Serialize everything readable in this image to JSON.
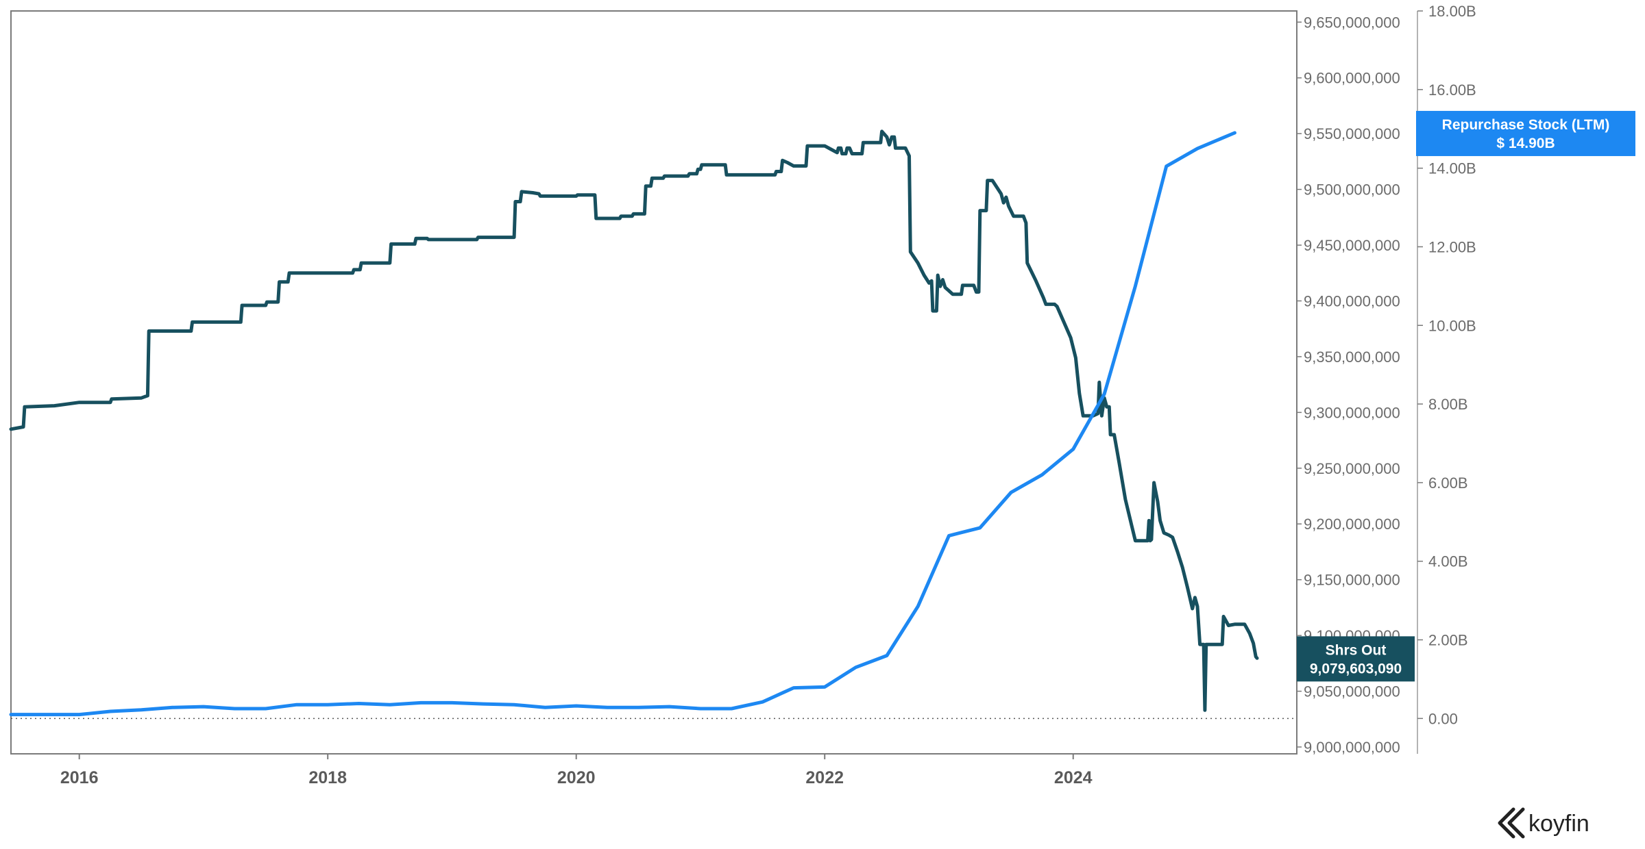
{
  "chart_data": {
    "type": "line",
    "x_ticks": [
      "2016",
      "2018",
      "2020",
      "2022",
      "2024"
    ],
    "x_range": [
      2015.45,
      2025.8
    ],
    "left_axis": {
      "range": [
        9000000000,
        9660000000
      ],
      "ticks": [
        "9,000,000,000",
        "9,050,000,000",
        "9,100,000,000",
        "9,150,000,000",
        "9,200,000,000",
        "9,250,000,000",
        "9,300,000,000",
        "9,350,000,000",
        "9,400,000,000",
        "9,450,000,000",
        "9,500,000,000",
        "9,550,000,000",
        "9,600,000,000",
        "9,650,000,000"
      ]
    },
    "right_axis": {
      "range": [
        -0.9,
        18.0
      ],
      "ticks": [
        "0.00",
        "2.00B",
        "4.00B",
        "6.00B",
        "8.00B",
        "10.00B",
        "12.00B",
        "14.00B",
        "16.00B",
        "18.00B"
      ]
    },
    "series": [
      {
        "name": "Shrs Out",
        "axis": "left",
        "color": "#17505f",
        "last_value_label": "9,079,603,090",
        "points": [
          [
            2015.45,
            9285000000
          ],
          [
            2015.55,
            9287000000
          ],
          [
            2015.56,
            9305000000
          ],
          [
            2015.8,
            9306000000
          ],
          [
            2016.0,
            9309000000
          ],
          [
            2016.25,
            9309000000
          ],
          [
            2016.26,
            9312000000
          ],
          [
            2016.5,
            9313000000
          ],
          [
            2016.55,
            9315000000
          ],
          [
            2016.56,
            9373000000
          ],
          [
            2016.9,
            9373000000
          ],
          [
            2016.91,
            9381000000
          ],
          [
            2017.3,
            9381000000
          ],
          [
            2017.31,
            9396000000
          ],
          [
            2017.5,
            9396000000
          ],
          [
            2017.51,
            9399000000
          ],
          [
            2017.6,
            9399000000
          ],
          [
            2017.61,
            9417000000
          ],
          [
            2017.68,
            9417000000
          ],
          [
            2017.69,
            9425000000
          ],
          [
            2018.2,
            9425000000
          ],
          [
            2018.21,
            9428000000
          ],
          [
            2018.26,
            9428000000
          ],
          [
            2018.27,
            9434000000
          ],
          [
            2018.5,
            9434000000
          ],
          [
            2018.51,
            9451000000
          ],
          [
            2018.7,
            9451000000
          ],
          [
            2018.71,
            9456000000
          ],
          [
            2018.8,
            9456000000
          ],
          [
            2018.81,
            9455000000
          ],
          [
            2019.2,
            9455000000
          ],
          [
            2019.21,
            9457000000
          ],
          [
            2019.5,
            9457000000
          ],
          [
            2019.51,
            9489000000
          ],
          [
            2019.55,
            9489000000
          ],
          [
            2019.56,
            9498000000
          ],
          [
            2019.65,
            9497000000
          ],
          [
            2019.7,
            9496000000
          ],
          [
            2019.71,
            9494000000
          ],
          [
            2020.0,
            9494000000
          ],
          [
            2020.01,
            9495000000
          ],
          [
            2020.15,
            9495000000
          ],
          [
            2020.16,
            9474000000
          ],
          [
            2020.35,
            9474000000
          ],
          [
            2020.36,
            9476000000
          ],
          [
            2020.45,
            9476000000
          ],
          [
            2020.46,
            9478000000
          ],
          [
            2020.55,
            9478000000
          ],
          [
            2020.56,
            9503000000
          ],
          [
            2020.6,
            9503000000
          ],
          [
            2020.61,
            9510000000
          ],
          [
            2020.7,
            9510000000
          ],
          [
            2020.71,
            9512000000
          ],
          [
            2020.9,
            9512000000
          ],
          [
            2020.91,
            9514000000
          ],
          [
            2020.97,
            9514000000
          ],
          [
            2020.98,
            9518000000
          ],
          [
            2021.0,
            9518000000
          ],
          [
            2021.01,
            9522000000
          ],
          [
            2021.2,
            9522000000
          ],
          [
            2021.21,
            9513000000
          ],
          [
            2021.6,
            9513000000
          ],
          [
            2021.61,
            9516000000
          ],
          [
            2021.65,
            9516000000
          ],
          [
            2021.66,
            9526000000
          ],
          [
            2021.7,
            9524000000
          ],
          [
            2021.75,
            9521000000
          ],
          [
            2021.85,
            9521000000
          ],
          [
            2021.86,
            9539000000
          ],
          [
            2022.0,
            9539000000
          ],
          [
            2022.05,
            9536000000
          ],
          [
            2022.1,
            9533000000
          ],
          [
            2022.11,
            9537000000
          ],
          [
            2022.13,
            9537000000
          ],
          [
            2022.14,
            9532000000
          ],
          [
            2022.17,
            9532000000
          ],
          [
            2022.18,
            9537000000
          ],
          [
            2022.2,
            9537000000
          ],
          [
            2022.22,
            9532000000
          ],
          [
            2022.3,
            9532000000
          ],
          [
            2022.31,
            9542000000
          ],
          [
            2022.45,
            9542000000
          ],
          [
            2022.46,
            9552000000
          ],
          [
            2022.5,
            9547000000
          ],
          [
            2022.52,
            9540000000
          ],
          [
            2022.54,
            9547000000
          ],
          [
            2022.56,
            9547000000
          ],
          [
            2022.57,
            9537000000
          ],
          [
            2022.65,
            9537000000
          ],
          [
            2022.68,
            9530000000
          ],
          [
            2022.69,
            9444000000
          ],
          [
            2022.75,
            9434000000
          ],
          [
            2022.8,
            9423000000
          ],
          [
            2022.84,
            9416000000
          ],
          [
            2022.86,
            9418000000
          ],
          [
            2022.87,
            9391000000
          ],
          [
            2022.9,
            9391000000
          ],
          [
            2022.91,
            9423000000
          ],
          [
            2022.93,
            9413000000
          ],
          [
            2022.95,
            9419000000
          ],
          [
            2022.97,
            9412000000
          ],
          [
            2023.0,
            9409000000
          ],
          [
            2023.03,
            9406000000
          ],
          [
            2023.1,
            9406000000
          ],
          [
            2023.11,
            9414000000
          ],
          [
            2023.2,
            9414000000
          ],
          [
            2023.22,
            9408000000
          ],
          [
            2023.24,
            9408000000
          ],
          [
            2023.25,
            9481000000
          ],
          [
            2023.3,
            9481000000
          ],
          [
            2023.31,
            9508000000
          ],
          [
            2023.35,
            9508000000
          ],
          [
            2023.42,
            9496000000
          ],
          [
            2023.44,
            9488000000
          ],
          [
            2023.46,
            9493000000
          ],
          [
            2023.48,
            9485000000
          ],
          [
            2023.52,
            9476000000
          ],
          [
            2023.6,
            9476000000
          ],
          [
            2023.62,
            9470000000
          ],
          [
            2023.63,
            9434000000
          ],
          [
            2023.7,
            9418000000
          ],
          [
            2023.76,
            9403000000
          ],
          [
            2023.78,
            9397000000
          ],
          [
            2023.85,
            9397000000
          ],
          [
            2023.87,
            9395000000
          ],
          [
            2023.98,
            9367000000
          ],
          [
            2024.02,
            9349000000
          ],
          [
            2024.05,
            9317000000
          ],
          [
            2024.08,
            9297000000
          ],
          [
            2024.16,
            9297000000
          ],
          [
            2024.2,
            9299000000
          ],
          [
            2024.21,
            9327000000
          ],
          [
            2024.23,
            9297000000
          ],
          [
            2024.25,
            9313000000
          ],
          [
            2024.27,
            9305000000
          ],
          [
            2024.29,
            9305000000
          ],
          [
            2024.3,
            9280000000
          ],
          [
            2024.33,
            9280000000
          ],
          [
            2024.37,
            9255000000
          ],
          [
            2024.42,
            9222000000
          ],
          [
            2024.47,
            9199000000
          ],
          [
            2024.5,
            9185000000
          ],
          [
            2024.6,
            9185000000
          ],
          [
            2024.61,
            9203000000
          ],
          [
            2024.62,
            9185000000
          ],
          [
            2024.63,
            9186000000
          ],
          [
            2024.65,
            9237000000
          ],
          [
            2024.68,
            9220000000
          ],
          [
            2024.7,
            9203000000
          ],
          [
            2024.73,
            9192000000
          ],
          [
            2024.77,
            9190000000
          ],
          [
            2024.8,
            9188000000
          ],
          [
            2024.84,
            9175000000
          ],
          [
            2024.88,
            9161000000
          ],
          [
            2024.92,
            9143000000
          ],
          [
            2024.96,
            9124000000
          ],
          [
            2024.98,
            9134000000
          ],
          [
            2025.0,
            9126000000
          ],
          [
            2025.02,
            9092000000
          ],
          [
            2025.05,
            9092000000
          ],
          [
            2025.06,
            9033000000
          ],
          [
            2025.07,
            9092000000
          ],
          [
            2025.2,
            9092000000
          ],
          [
            2025.21,
            9117000000
          ],
          [
            2025.25,
            9109000000
          ],
          [
            2025.3,
            9110000000
          ],
          [
            2025.38,
            9110000000
          ],
          [
            2025.42,
            9102000000
          ],
          [
            2025.45,
            9093000000
          ],
          [
            2025.47,
            9081000000
          ],
          [
            2025.48,
            9079603090
          ]
        ]
      },
      {
        "name": "Repurchase Stock (LTM)",
        "axis": "right",
        "color": "#1d88f2",
        "last_value_label": "$ 14.90B",
        "points": [
          [
            2015.45,
            0.1
          ],
          [
            2015.7,
            0.1
          ],
          [
            2016.0,
            0.1
          ],
          [
            2016.25,
            0.18
          ],
          [
            2016.5,
            0.22
          ],
          [
            2016.75,
            0.28
          ],
          [
            2017.0,
            0.3
          ],
          [
            2017.25,
            0.25
          ],
          [
            2017.5,
            0.25
          ],
          [
            2017.75,
            0.35
          ],
          [
            2018.0,
            0.35
          ],
          [
            2018.25,
            0.38
          ],
          [
            2018.5,
            0.35
          ],
          [
            2018.75,
            0.4
          ],
          [
            2019.0,
            0.4
          ],
          [
            2019.25,
            0.37
          ],
          [
            2019.5,
            0.35
          ],
          [
            2019.75,
            0.28
          ],
          [
            2020.0,
            0.32
          ],
          [
            2020.25,
            0.28
          ],
          [
            2020.5,
            0.28
          ],
          [
            2020.75,
            0.3
          ],
          [
            2021.0,
            0.25
          ],
          [
            2021.25,
            0.25
          ],
          [
            2021.5,
            0.42
          ],
          [
            2021.75,
            0.78
          ],
          [
            2022.0,
            0.8
          ],
          [
            2022.25,
            1.3
          ],
          [
            2022.5,
            1.6
          ],
          [
            2022.75,
            2.85
          ],
          [
            2023.0,
            4.65
          ],
          [
            2023.25,
            4.85
          ],
          [
            2023.5,
            5.75
          ],
          [
            2023.75,
            6.2
          ],
          [
            2024.0,
            6.85
          ],
          [
            2024.25,
            8.25
          ],
          [
            2024.5,
            11.0
          ],
          [
            2024.75,
            14.05
          ],
          [
            2025.0,
            14.5
          ],
          [
            2025.3,
            14.9
          ]
        ]
      }
    ],
    "grid": false,
    "legend": "value tags on right axis"
  },
  "brand": {
    "name": "koyfin"
  }
}
